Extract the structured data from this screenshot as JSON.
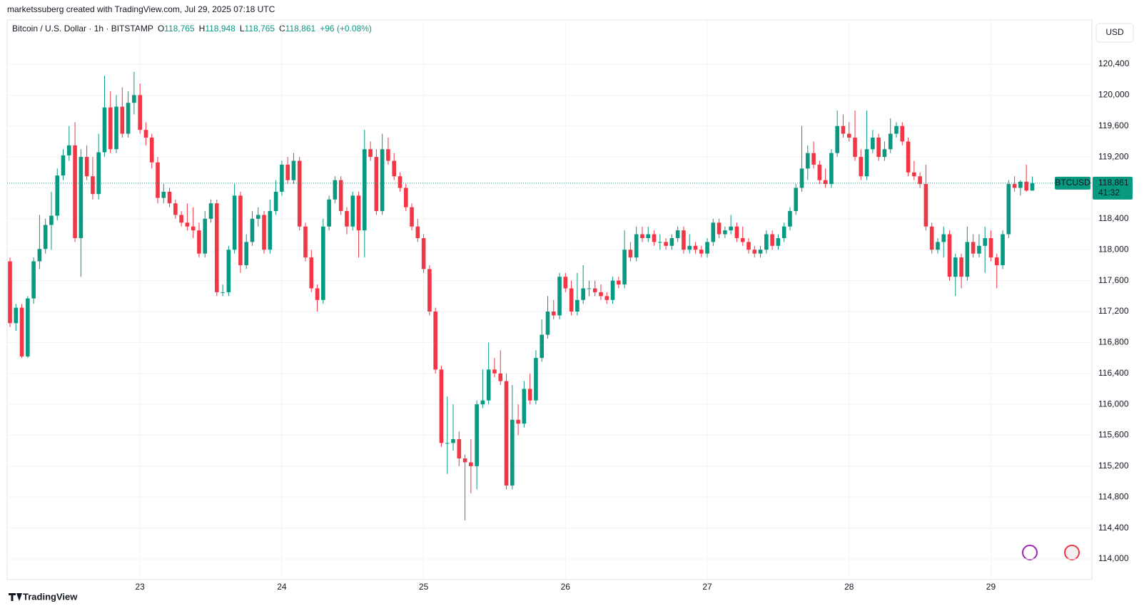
{
  "chart_data": {
    "type": "candlestick",
    "attribution": "marketssuberg created with TradingView.com, Jul 29, 2025 07:18 UTC",
    "legend": {
      "symbol": "Bitcoin / U.S. Dollar · 1h · BITSTAMP",
      "items": [
        {
          "key": "O",
          "value": "118,765"
        },
        {
          "key": "H",
          "value": "118,948"
        },
        {
          "key": "L",
          "value": "118,765"
        },
        {
          "key": "C",
          "value": "118,861"
        }
      ],
      "change": "+96 (+0.08%)"
    },
    "currency": "USD",
    "ticker": "BTCUSD",
    "last_price": {
      "value": 118861,
      "label": "118,861"
    },
    "countdown": "41:32",
    "footer": "TradingView",
    "up_color": "#089981",
    "down_color": "#f23645",
    "grid": true,
    "ylim": [
      113800,
      120700
    ],
    "yticks": [
      {
        "value": 114000,
        "label": "114,000"
      },
      {
        "value": 114400,
        "label": "114,400"
      },
      {
        "value": 114800,
        "label": "114,800"
      },
      {
        "value": 115200,
        "label": "115,200"
      },
      {
        "value": 115600,
        "label": "115,600"
      },
      {
        "value": 116000,
        "label": "116,000"
      },
      {
        "value": 116400,
        "label": "116,400"
      },
      {
        "value": 116800,
        "label": "116,800"
      },
      {
        "value": 117200,
        "label": "117,200"
      },
      {
        "value": 117600,
        "label": "117,600"
      },
      {
        "value": 118000,
        "label": "118,000"
      },
      {
        "value": 118400,
        "label": "118,400"
      },
      {
        "value": 118800,
        "label": "118,800"
      },
      {
        "value": 119200,
        "label": "119,200"
      },
      {
        "value": 119600,
        "label": "119,600"
      },
      {
        "value": 120000,
        "label": "120,000"
      },
      {
        "value": 120400,
        "label": "120,400"
      }
    ],
    "xticks": [
      {
        "value": 22,
        "label": "23"
      },
      {
        "value": 46,
        "label": "24"
      },
      {
        "value": 70,
        "label": "25"
      },
      {
        "value": 94,
        "label": "26"
      },
      {
        "value": 118,
        "label": "27"
      },
      {
        "value": 142,
        "label": "28"
      },
      {
        "value": 166,
        "label": "29"
      }
    ],
    "candles": [
      [
        117850,
        117900,
        117000,
        117050
      ],
      [
        117050,
        117300,
        116950,
        117250
      ],
      [
        117250,
        117300,
        116600,
        116620
      ],
      [
        116620,
        117400,
        116600,
        117370
      ],
      [
        117370,
        117900,
        117300,
        117850
      ],
      [
        117850,
        118450,
        117750,
        118010
      ],
      [
        118010,
        118400,
        117950,
        118320
      ],
      [
        118320,
        118750,
        118000,
        118440
      ],
      [
        118440,
        119050,
        118380,
        118960
      ],
      [
        118960,
        119300,
        118900,
        119220
      ],
      [
        119220,
        119600,
        119150,
        119350
      ],
      [
        119350,
        119650,
        118100,
        118150
      ],
      [
        118150,
        119300,
        117650,
        119200
      ],
      [
        119200,
        119350,
        118900,
        118950
      ],
      [
        118950,
        119200,
        118650,
        118720
      ],
      [
        118720,
        119500,
        118650,
        119260
      ],
      [
        119260,
        120250,
        119200,
        119840
      ],
      [
        119840,
        120050,
        119250,
        119300
      ],
      [
        119300,
        120000,
        119250,
        119850
      ],
      [
        119850,
        120100,
        119450,
        119500
      ],
      [
        119500,
        120050,
        119450,
        119900
      ],
      [
        119900,
        120300,
        119750,
        120000
      ],
      [
        120000,
        120150,
        119500,
        119550
      ],
      [
        119550,
        119650,
        119350,
        119450
      ],
      [
        119450,
        119500,
        119050,
        119130
      ],
      [
        119130,
        119200,
        118600,
        118670
      ],
      [
        118670,
        118850,
        118600,
        118750
      ],
      [
        118750,
        118800,
        118550,
        118600
      ],
      [
        118600,
        118650,
        118400,
        118450
      ],
      [
        118450,
        118500,
        118300,
        118350
      ],
      [
        118350,
        118600,
        118250,
        118300
      ],
      [
        118300,
        118550,
        118150,
        118250
      ],
      [
        118250,
        118350,
        117900,
        117950
      ],
      [
        117950,
        118500,
        117900,
        118400
      ],
      [
        118400,
        118650,
        118350,
        118600
      ],
      [
        118600,
        118650,
        117400,
        117450
      ],
      [
        117450,
        117550,
        117400,
        117450
      ],
      [
        117450,
        118050,
        117400,
        118000
      ],
      [
        118000,
        118850,
        117950,
        118700
      ],
      [
        118700,
        118750,
        117700,
        117800
      ],
      [
        117800,
        118200,
        117750,
        118100
      ],
      [
        118100,
        118500,
        118050,
        118400
      ],
      [
        118400,
        118550,
        118300,
        118450
      ],
      [
        118450,
        118500,
        117950,
        118000
      ],
      [
        118000,
        118650,
        117950,
        118500
      ],
      [
        118500,
        118900,
        118450,
        118750
      ],
      [
        118750,
        119150,
        118700,
        119100
      ],
      [
        119100,
        119200,
        118850,
        118900
      ],
      [
        118900,
        119250,
        118850,
        119150
      ],
      [
        119150,
        119200,
        118250,
        118300
      ],
      [
        118300,
        118350,
        117850,
        117900
      ],
      [
        117900,
        118000,
        117450,
        117500
      ],
      [
        117500,
        117550,
        117200,
        117350
      ],
      [
        117350,
        118400,
        117300,
        118300
      ],
      [
        118300,
        118700,
        118250,
        118650
      ],
      [
        118650,
        118950,
        118600,
        118900
      ],
      [
        118900,
        118950,
        118450,
        118500
      ],
      [
        118500,
        118550,
        118200,
        118300
      ],
      [
        118300,
        118750,
        118250,
        118700
      ],
      [
        118700,
        118750,
        117900,
        118250
      ],
      [
        118250,
        119550,
        117900,
        119300
      ],
      [
        119300,
        119400,
        119150,
        119200
      ],
      [
        119200,
        119300,
        118450,
        118500
      ],
      [
        118500,
        119500,
        118450,
        119300
      ],
      [
        119300,
        119450,
        119100,
        119150
      ],
      [
        119150,
        119250,
        118900,
        118950
      ],
      [
        118950,
        119000,
        118750,
        118800
      ],
      [
        118800,
        118850,
        118500,
        118550
      ],
      [
        118550,
        118600,
        118250,
        118300
      ],
      [
        118300,
        118400,
        118100,
        118150
      ],
      [
        118150,
        118200,
        117700,
        117750
      ],
      [
        117750,
        117800,
        117150,
        117200
      ],
      [
        117200,
        117250,
        116400,
        116450
      ],
      [
        116450,
        116500,
        115450,
        115500
      ],
      [
        115500,
        116100,
        115100,
        115500
      ],
      [
        115500,
        116000,
        115400,
        115550
      ],
      [
        115550,
        115650,
        115200,
        115300
      ],
      [
        115300,
        115350,
        114500,
        115250
      ],
      [
        115250,
        115550,
        114850,
        115200
      ],
      [
        115200,
        116050,
        114900,
        116000
      ],
      [
        116000,
        116450,
        115950,
        116050
      ],
      [
        116050,
        116800,
        116000,
        116450
      ],
      [
        116450,
        116600,
        116350,
        116400
      ],
      [
        116400,
        116700,
        116250,
        116300
      ],
      [
        116300,
        116400,
        114900,
        114950
      ],
      [
        114950,
        116250,
        114900,
        115800
      ],
      [
        115800,
        116000,
        115600,
        115750
      ],
      [
        115750,
        116300,
        115700,
        116200
      ],
      [
        116200,
        116400,
        116000,
        116050
      ],
      [
        116050,
        116700,
        116000,
        116600
      ],
      [
        116600,
        117100,
        116550,
        116900
      ],
      [
        116900,
        117400,
        116850,
        117200
      ],
      [
        117200,
        117350,
        117100,
        117150
      ],
      [
        117150,
        117700,
        117100,
        117650
      ],
      [
        117650,
        117700,
        117450,
        117500
      ],
      [
        117500,
        117600,
        117150,
        117200
      ],
      [
        117200,
        117700,
        117150,
        117350
      ],
      [
        117350,
        117800,
        117300,
        117500
      ],
      [
        117500,
        117600,
        117400,
        117500
      ],
      [
        117500,
        117600,
        117400,
        117450
      ],
      [
        117450,
        117550,
        117350,
        117400
      ],
      [
        117400,
        117450,
        117300,
        117350
      ],
      [
        117350,
        117650,
        117300,
        117600
      ],
      [
        117600,
        117650,
        117500,
        117550
      ],
      [
        117550,
        118250,
        117500,
        118000
      ],
      [
        118000,
        118100,
        117850,
        117900
      ],
      [
        117900,
        118300,
        117850,
        118200
      ],
      [
        118200,
        118300,
        118100,
        118150
      ],
      [
        118150,
        118300,
        118100,
        118200
      ],
      [
        118200,
        118250,
        118050,
        118100
      ],
      [
        118100,
        118200,
        118000,
        118100
      ],
      [
        118100,
        118150,
        118000,
        118050
      ],
      [
        118050,
        118200,
        118000,
        118150
      ],
      [
        118150,
        118300,
        118100,
        118250
      ],
      [
        118250,
        118300,
        117950,
        118000
      ],
      [
        118000,
        118200,
        117950,
        118050
      ],
      [
        118050,
        118100,
        117950,
        118000
      ],
      [
        118000,
        118050,
        117900,
        117950
      ],
      [
        117950,
        118150,
        117900,
        118100
      ],
      [
        118100,
        118400,
        118050,
        118350
      ],
      [
        118350,
        118400,
        118150,
        118200
      ],
      [
        118200,
        118300,
        118150,
        118250
      ],
      [
        118250,
        118450,
        118200,
        118300
      ],
      [
        118300,
        118350,
        118100,
        118150
      ],
      [
        118150,
        118300,
        118050,
        118100
      ],
      [
        118100,
        118150,
        117950,
        118000
      ],
      [
        118000,
        118050,
        117900,
        117950
      ],
      [
        117950,
        118050,
        117900,
        118000
      ],
      [
        118000,
        118250,
        117950,
        118200
      ],
      [
        118200,
        118250,
        118000,
        118050
      ],
      [
        118050,
        118200,
        118000,
        118150
      ],
      [
        118150,
        118350,
        118100,
        118300
      ],
      [
        118300,
        118550,
        118250,
        118500
      ],
      [
        118500,
        118850,
        118450,
        118800
      ],
      [
        118800,
        119600,
        118750,
        119050
      ],
      [
        119050,
        119350,
        118900,
        119250
      ],
      [
        119250,
        119400,
        119050,
        119100
      ],
      [
        119100,
        119150,
        118850,
        118900
      ],
      [
        118900,
        119050,
        118800,
        118850
      ],
      [
        118850,
        119300,
        118800,
        119250
      ],
      [
        119250,
        119800,
        119200,
        119600
      ],
      [
        119600,
        119750,
        119450,
        119500
      ],
      [
        119500,
        119650,
        119400,
        119450
      ],
      [
        119450,
        119800,
        119150,
        119200
      ],
      [
        119200,
        119300,
        118900,
        118950
      ],
      [
        118950,
        119800,
        118900,
        119300
      ],
      [
        119300,
        119550,
        119250,
        119450
      ],
      [
        119450,
        119500,
        119150,
        119200
      ],
      [
        119200,
        119400,
        119150,
        119300
      ],
      [
        119300,
        119700,
        119250,
        119500
      ],
      [
        119500,
        119650,
        119450,
        119600
      ],
      [
        119600,
        119650,
        119350,
        119400
      ],
      [
        119400,
        119450,
        118950,
        119000
      ],
      [
        119000,
        119150,
        118900,
        118950
      ],
      [
        118950,
        119000,
        118800,
        118850
      ],
      [
        118850,
        119100,
        118250,
        118300
      ],
      [
        118300,
        118350,
        117950,
        118000
      ],
      [
        118000,
        118150,
        117950,
        118100
      ],
      [
        118100,
        118300,
        117900,
        118200
      ],
      [
        118200,
        118250,
        117600,
        117650
      ],
      [
        117650,
        117950,
        117400,
        117900
      ],
      [
        117900,
        117950,
        117500,
        117650
      ],
      [
        117650,
        118300,
        117600,
        118100
      ],
      [
        118100,
        118200,
        117900,
        117950
      ],
      [
        117950,
        118200,
        117900,
        118050
      ],
      [
        118050,
        118300,
        117700,
        118150
      ],
      [
        118150,
        118250,
        117850,
        117900
      ],
      [
        117900,
        117950,
        117500,
        117800
      ],
      [
        117800,
        118250,
        117750,
        118200
      ],
      [
        118200,
        118900,
        118150,
        118850
      ],
      [
        118850,
        118950,
        118750,
        118800
      ],
      [
        118800,
        118900,
        118700,
        118880
      ],
      [
        118880,
        119100,
        118750,
        118765
      ],
      [
        118765,
        118948,
        118765,
        118861
      ]
    ]
  }
}
